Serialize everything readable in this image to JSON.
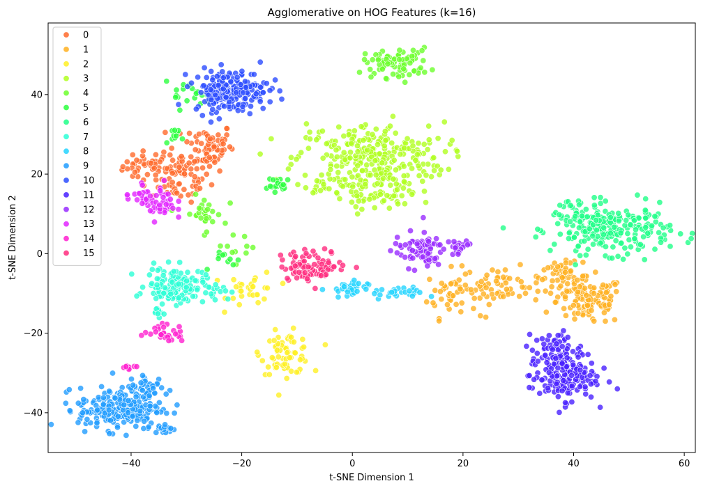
{
  "chart_data": {
    "type": "scatter",
    "title": "Agglomerative on HOG Features (k=16)",
    "xlabel": "t-SNE Dimension 1",
    "ylabel": "t-SNE Dimension 2",
    "xlim": [
      -55,
      62
    ],
    "ylim": [
      -50,
      58
    ],
    "xticks": [
      -40,
      -20,
      0,
      20,
      40,
      60
    ],
    "yticks": [
      -40,
      -20,
      0,
      20,
      40
    ],
    "grid": false,
    "legend": "top-left",
    "series": [
      {
        "name": "0",
        "color": "#ff6a2c",
        "clusters": [
          {
            "cx": -37,
            "cy": 22,
            "rx": 3,
            "ry": 2.5,
            "n": 40
          },
          {
            "cx": -31,
            "cy": 19,
            "rx": 3.5,
            "ry": 4,
            "n": 70
          },
          {
            "cx": -26,
            "cy": 27,
            "rx": 3,
            "ry": 4,
            "n": 70
          }
        ]
      },
      {
        "name": "1",
        "color": "#ffb020",
        "clusters": [
          {
            "cx": 18,
            "cy": -10,
            "rx": 3,
            "ry": 4,
            "n": 40
          },
          {
            "cx": 27,
            "cy": -8,
            "rx": 5,
            "ry": 3,
            "n": 60
          },
          {
            "cx": 38,
            "cy": -6,
            "rx": 3,
            "ry": 2.5,
            "n": 50
          },
          {
            "cx": 43,
            "cy": -12,
            "rx": 4,
            "ry": 4,
            "n": 110
          }
        ]
      },
      {
        "name": "2",
        "color": "#fff024",
        "clusters": [
          {
            "cx": -18,
            "cy": -9,
            "rx": 3,
            "ry": 3,
            "n": 30
          },
          {
            "cx": -12,
            "cy": -25,
            "rx": 3,
            "ry": 3.5,
            "n": 70
          }
        ]
      },
      {
        "name": "3",
        "color": "#b0ff20",
        "clusters": [
          {
            "cx": 3,
            "cy": 24,
            "rx": 9,
            "ry": 6,
            "n": 280
          },
          {
            "cx": 3,
            "cy": 15,
            "rx": 6,
            "ry": 3,
            "n": 70
          }
        ]
      },
      {
        "name": "4",
        "color": "#6cff2c",
        "clusters": [
          {
            "cx": 8,
            "cy": 48,
            "rx": 4,
            "ry": 2.5,
            "n": 80
          },
          {
            "cx": -27,
            "cy": 10,
            "rx": 2.5,
            "ry": 3,
            "n": 30
          },
          {
            "cx": -20,
            "cy": 2,
            "rx": 3,
            "ry": 2,
            "n": 10
          }
        ]
      },
      {
        "name": "5",
        "color": "#2cff3e",
        "clusters": [
          {
            "cx": -30,
            "cy": 40,
            "rx": 3,
            "ry": 2,
            "n": 20
          },
          {
            "cx": -13,
            "cy": 17,
            "rx": 1.5,
            "ry": 1.5,
            "n": 20
          },
          {
            "cx": -32,
            "cy": 30,
            "rx": 1.5,
            "ry": 1,
            "n": 10
          },
          {
            "cx": -22,
            "cy": -2,
            "rx": 2,
            "ry": 1.5,
            "n": 10
          }
        ]
      },
      {
        "name": "6",
        "color": "#20ff88",
        "clusters": [
          {
            "cx": 47,
            "cy": 6,
            "rx": 7,
            "ry": 4,
            "n": 230
          },
          {
            "cx": 40,
            "cy": 10,
            "rx": 3,
            "ry": 3,
            "n": 30
          }
        ]
      },
      {
        "name": "7",
        "color": "#2cffd6",
        "clusters": [
          {
            "cx": -32,
            "cy": -8,
            "rx": 3.5,
            "ry": 3,
            "n": 130
          },
          {
            "cx": -35,
            "cy": -15,
            "rx": 1,
            "ry": 1,
            "n": 10
          },
          {
            "cx": -25,
            "cy": -9,
            "rx": 2,
            "ry": 1.5,
            "n": 15
          }
        ]
      },
      {
        "name": "8",
        "color": "#24d4ff",
        "clusters": [
          {
            "cx": -1,
            "cy": -9,
            "rx": 2.5,
            "ry": 1.5,
            "n": 35
          },
          {
            "cx": 8,
            "cy": -10,
            "rx": 3,
            "ry": 1,
            "n": 25
          }
        ]
      },
      {
        "name": "9",
        "color": "#209cff",
        "clusters": [
          {
            "cx": -42,
            "cy": -39,
            "rx": 5,
            "ry": 3.5,
            "n": 220
          },
          {
            "cx": -37,
            "cy": -34,
            "rx": 2.5,
            "ry": 2.5,
            "n": 40
          },
          {
            "cx": -34,
            "cy": -44,
            "rx": 1.5,
            "ry": 0.8,
            "n": 15
          }
        ]
      },
      {
        "name": "10",
        "color": "#2c4cff",
        "clusters": [
          {
            "cx": -22,
            "cy": 41,
            "rx": 4.5,
            "ry": 3.5,
            "n": 200
          }
        ]
      },
      {
        "name": "11",
        "color": "#4820ff",
        "clusters": [
          {
            "cx": 37,
            "cy": -24,
            "rx": 3,
            "ry": 3,
            "n": 60
          },
          {
            "cx": 38,
            "cy": -31,
            "rx": 4,
            "ry": 4,
            "n": 150
          }
        ]
      },
      {
        "name": "12",
        "color": "#982cff",
        "clusters": [
          {
            "cx": 12,
            "cy": 1,
            "rx": 3,
            "ry": 3,
            "n": 70
          },
          {
            "cx": 19,
            "cy": 1,
            "rx": 2,
            "ry": 1.5,
            "n": 20
          }
        ]
      },
      {
        "name": "13",
        "color": "#e224ff",
        "clusters": [
          {
            "cx": -35,
            "cy": 13,
            "rx": 2,
            "ry": 3,
            "n": 50
          },
          {
            "cx": -39,
            "cy": 15,
            "rx": 1.5,
            "ry": 1.5,
            "n": 10
          }
        ]
      },
      {
        "name": "14",
        "color": "#ff20d0",
        "clusters": [
          {
            "cx": -34,
            "cy": -20,
            "rx": 2.5,
            "ry": 1.5,
            "n": 30
          },
          {
            "cx": -40,
            "cy": -28.5,
            "rx": 1.5,
            "ry": 0.4,
            "n": 8
          }
        ]
      },
      {
        "name": "15",
        "color": "#ff2c7e",
        "clusters": [
          {
            "cx": -7,
            "cy": -3,
            "rx": 4,
            "ry": 2.5,
            "n": 90
          }
        ]
      }
    ]
  }
}
